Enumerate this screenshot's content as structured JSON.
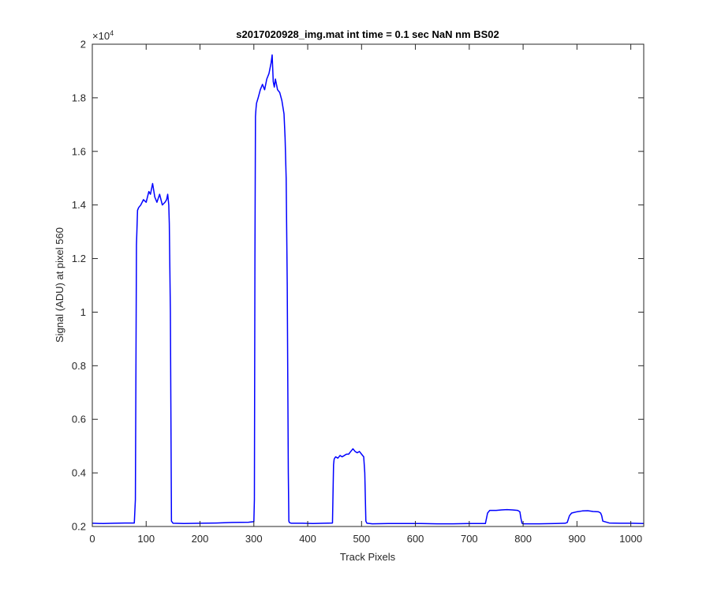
{
  "chart_data": {
    "type": "line",
    "title": "s2017020928_img.mat int time = 0.1 sec  NaN nm BS02",
    "xlabel": "Track Pixels",
    "ylabel": "Signal (ADU) at pixel 560",
    "xlim": [
      0,
      1024
    ],
    "ylim": [
      2000,
      20000
    ],
    "x_ticks": [
      0,
      100,
      200,
      300,
      400,
      500,
      600,
      700,
      800,
      900,
      1000
    ],
    "x_tick_labels": [
      "0",
      "100",
      "200",
      "300",
      "400",
      "500",
      "600",
      "700",
      "800",
      "900",
      "1000"
    ],
    "y_ticks": [
      2000,
      4000,
      6000,
      8000,
      10000,
      12000,
      14000,
      16000,
      18000,
      20000
    ],
    "y_tick_labels": [
      "0.2",
      "0.4",
      "0.6",
      "0.8",
      "1",
      "1.2",
      "1.4",
      "1.6",
      "1.8",
      "2"
    ],
    "y_exponent_base": "×10",
    "y_exponent_power": "4",
    "grid": false,
    "line_color": "#0000ff",
    "series": [
      {
        "x": [
          0,
          20,
          40,
          60,
          78,
          80,
          82,
          84,
          86,
          90,
          95,
          100,
          105,
          108,
          112,
          116,
          120,
          125,
          130,
          135,
          138,
          140,
          142,
          143,
          145,
          147,
          150,
          170,
          200,
          230,
          260,
          290,
          300,
          301,
          302,
          303,
          304,
          305,
          308,
          312,
          316,
          320,
          324,
          328,
          332,
          334,
          336,
          338,
          340,
          344,
          348,
          352,
          356,
          358,
          360,
          362,
          364,
          365,
          366,
          368,
          370,
          390,
          410,
          430,
          446,
          448,
          449,
          450,
          452,
          456,
          460,
          464,
          468,
          472,
          476,
          480,
          484,
          488,
          492,
          496,
          500,
          504,
          506,
          508,
          510,
          520,
          550,
          580,
          610,
          640,
          670,
          700,
          730,
          734,
          736,
          738,
          742,
          750,
          760,
          770,
          780,
          790,
          794,
          796,
          798,
          800,
          830,
          860,
          878,
          882,
          886,
          890,
          900,
          910,
          920,
          930,
          940,
          944,
          946,
          948,
          960,
          980,
          1000,
          1024
        ],
        "y": [
          2120,
          2110,
          2120,
          2130,
          2130,
          3000,
          12500,
          13800,
          13900,
          14000,
          14200,
          14100,
          14500,
          14400,
          14800,
          14300,
          14100,
          14400,
          14000,
          14100,
          14200,
          14400,
          14000,
          13300,
          10000,
          2200,
          2120,
          2110,
          2120,
          2130,
          2150,
          2160,
          2180,
          3000,
          12000,
          17300,
          17600,
          17800,
          18000,
          18300,
          18500,
          18300,
          18700,
          18900,
          19300,
          19600,
          18600,
          18400,
          18700,
          18300,
          18200,
          17900,
          17400,
          16500,
          15000,
          11000,
          4000,
          2200,
          2150,
          2130,
          2120,
          2120,
          2110,
          2120,
          2130,
          4300,
          4500,
          4550,
          4600,
          4550,
          4650,
          4600,
          4650,
          4700,
          4700,
          4800,
          4900,
          4800,
          4750,
          4800,
          4700,
          4600,
          4000,
          2200,
          2120,
          2100,
          2110,
          2110,
          2110,
          2100,
          2100,
          2110,
          2110,
          2500,
          2550,
          2600,
          2600,
          2600,
          2620,
          2630,
          2620,
          2600,
          2550,
          2300,
          2120,
          2100,
          2100,
          2110,
          2120,
          2150,
          2400,
          2500,
          2550,
          2580,
          2590,
          2560,
          2550,
          2500,
          2400,
          2200,
          2130,
          2120,
          2120,
          2110
        ]
      }
    ]
  }
}
